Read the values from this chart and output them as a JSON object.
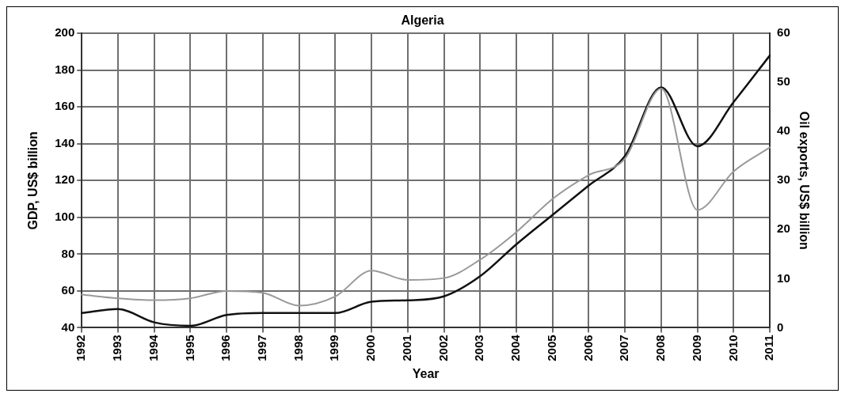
{
  "chart_data": {
    "type": "line",
    "title": "Algeria",
    "xlabel": "Year",
    "ylabel": "GDP, US$ billion",
    "y2label": "Oil exports, US$ billion",
    "categories": [
      "1992",
      "1993",
      "1994",
      "1995",
      "1996",
      "1997",
      "1998",
      "1999",
      "2000",
      "2001",
      "2002",
      "2003",
      "2004",
      "2005",
      "2006",
      "2007",
      "2008",
      "2009",
      "2010",
      "2011"
    ],
    "series": [
      {
        "color": "#999999",
        "values": [
          58,
          56,
          55,
          56,
          60,
          59,
          52,
          57,
          71,
          66,
          67,
          77,
          92,
          110,
          123,
          132,
          170,
          104,
          125,
          138
        ]
      },
      {
        "color": "#111111",
        "axis": "y2",
        "values": [
          3,
          3.8,
          1.1,
          0.4,
          2.6,
          3,
          3,
          3,
          5.3,
          5.6,
          6.4,
          10.5,
          17,
          23,
          29,
          35,
          49,
          37,
          46,
          55.5
        ]
      }
    ],
    "ylim": [
      40,
      200
    ],
    "yticks": [
      40,
      60,
      80,
      100,
      120,
      140,
      160,
      180,
      200
    ],
    "y2lim": [
      0,
      60
    ],
    "y2ticks": [
      0,
      10,
      20,
      30,
      40,
      50,
      60
    ],
    "grid": true,
    "legend": false,
    "marker": "none",
    "line_style": "solid"
  }
}
